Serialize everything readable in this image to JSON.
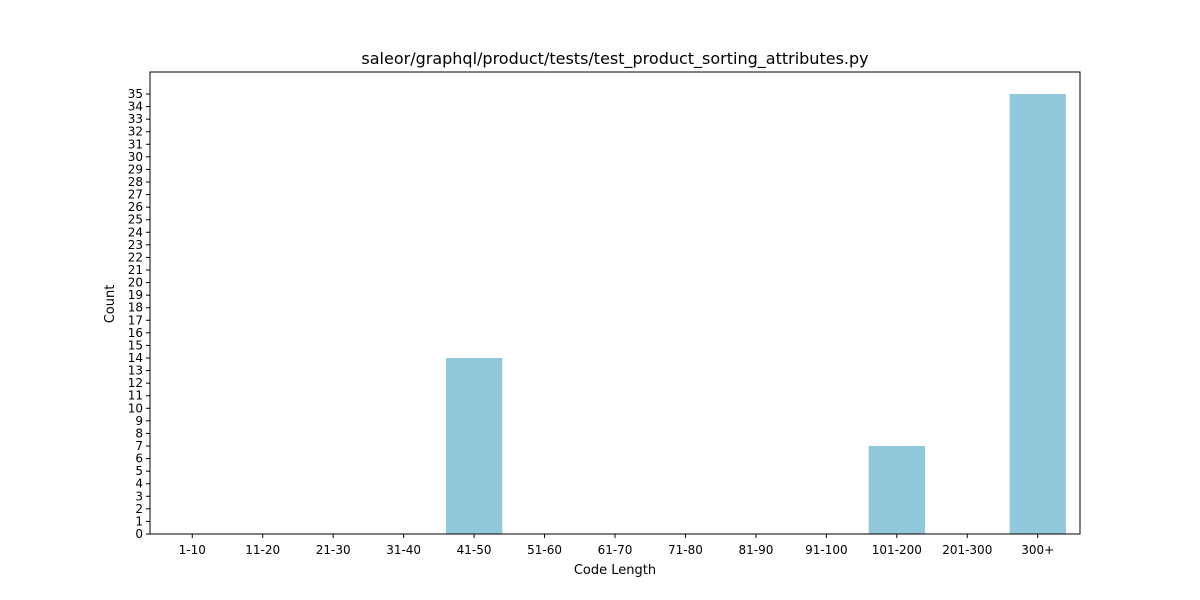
{
  "chart_data": {
    "type": "bar",
    "title": "saleor/graphql/product/tests/test_product_sorting_attributes.py",
    "xlabel": "Code Length",
    "ylabel": "Count",
    "categories": [
      "1-10",
      "11-20",
      "21-30",
      "31-40",
      "41-50",
      "51-60",
      "61-70",
      "71-80",
      "81-90",
      "91-100",
      "101-200",
      "201-300",
      "300+"
    ],
    "values": [
      0,
      0,
      0,
      0,
      14,
      0,
      0,
      0,
      0,
      0,
      7,
      0,
      35
    ],
    "yticks": [
      0,
      1,
      2,
      3,
      4,
      5,
      6,
      7,
      8,
      9,
      10,
      11,
      12,
      13,
      14,
      15,
      16,
      17,
      18,
      19,
      20,
      21,
      22,
      23,
      24,
      25,
      26,
      27,
      28,
      29,
      30,
      31,
      32,
      33,
      34,
      35
    ],
    "ylim": [
      0,
      36.75
    ],
    "bar_color": "#92c8dc",
    "grid": false
  }
}
